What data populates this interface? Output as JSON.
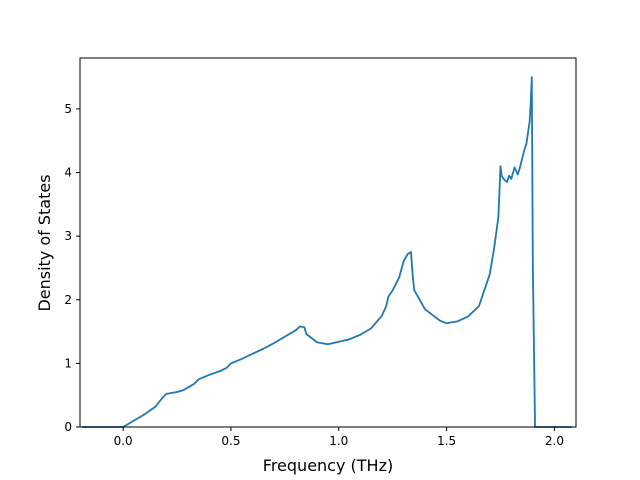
{
  "chart_data": {
    "type": "line",
    "title": "",
    "xlabel": "Frequency (THz)",
    "ylabel": "Density of States",
    "xlim": [
      -0.2,
      2.1
    ],
    "ylim": [
      0,
      5.8
    ],
    "xticks": [
      {
        "value": 0.0,
        "label": "0.0"
      },
      {
        "value": 0.5,
        "label": "0.5"
      },
      {
        "value": 1.0,
        "label": "1.0"
      },
      {
        "value": 1.5,
        "label": "1.5"
      },
      {
        "value": 2.0,
        "label": "2.0"
      }
    ],
    "yticks": [
      {
        "value": 0,
        "label": "0"
      },
      {
        "value": 1,
        "label": "1"
      },
      {
        "value": 2,
        "label": "2"
      },
      {
        "value": 3,
        "label": "3"
      },
      {
        "value": 4,
        "label": "4"
      },
      {
        "value": 5,
        "label": "5"
      }
    ],
    "grid": false,
    "legend": "none",
    "line_color": "#1f77b4",
    "series": [
      {
        "x": [
          -0.19,
          0.0,
          0.05,
          0.1,
          0.15,
          0.18,
          0.2,
          0.25,
          0.28,
          0.3,
          0.33,
          0.35,
          0.4,
          0.45,
          0.48,
          0.5,
          0.55,
          0.6,
          0.65,
          0.7,
          0.75,
          0.8,
          0.82,
          0.84,
          0.85,
          0.9,
          0.95,
          1.0,
          1.05,
          1.1,
          1.15,
          1.2,
          1.22,
          1.23,
          1.25,
          1.28,
          1.3,
          1.32,
          1.335,
          1.34,
          1.345,
          1.35,
          1.4,
          1.45,
          1.47,
          1.5,
          1.55,
          1.6,
          1.65,
          1.7,
          1.72,
          1.74,
          1.75,
          1.755,
          1.76,
          1.77,
          1.78,
          1.79,
          1.8,
          1.815,
          1.83,
          1.84,
          1.86,
          1.87,
          1.885,
          1.89,
          1.895,
          1.9,
          1.91,
          1.915,
          1.92,
          1.93,
          2.0,
          2.08
        ],
        "y": [
          0,
          0,
          0.1,
          0.2,
          0.32,
          0.45,
          0.52,
          0.55,
          0.58,
          0.62,
          0.68,
          0.75,
          0.82,
          0.88,
          0.93,
          1.0,
          1.07,
          1.15,
          1.23,
          1.32,
          1.42,
          1.52,
          1.58,
          1.57,
          1.46,
          1.33,
          1.3,
          1.34,
          1.38,
          1.45,
          1.55,
          1.75,
          1.9,
          2.05,
          2.15,
          2.35,
          2.6,
          2.72,
          2.75,
          2.5,
          2.3,
          2.15,
          1.85,
          1.72,
          1.67,
          1.63,
          1.66,
          1.74,
          1.9,
          2.4,
          2.8,
          3.3,
          4.1,
          3.95,
          3.92,
          3.88,
          3.85,
          3.95,
          3.9,
          4.08,
          3.97,
          4.08,
          4.35,
          4.45,
          4.8,
          5.1,
          5.5,
          2.5,
          0,
          0,
          0,
          0,
          0,
          0
        ]
      }
    ]
  }
}
